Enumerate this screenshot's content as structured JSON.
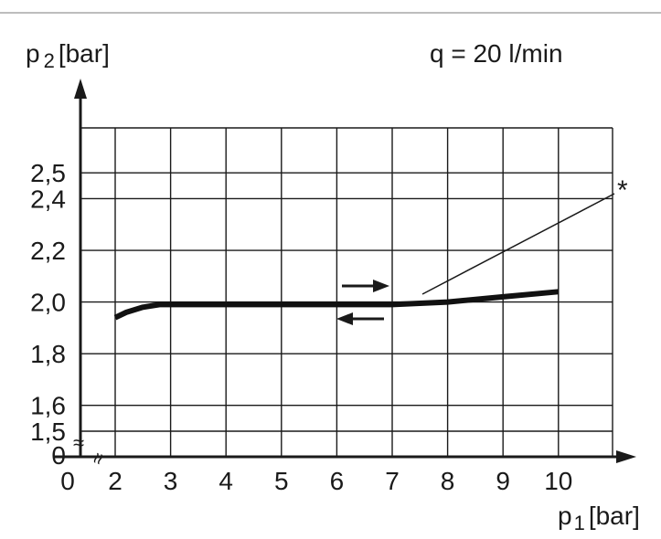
{
  "chart_data": {
    "type": "line",
    "annotation": "q = 20 l/min",
    "ylabel": {
      "main": "p",
      "sub": "2",
      "unit": "[bar]"
    },
    "xlabel": {
      "main": "p",
      "sub": "1",
      "unit": "[bar]"
    },
    "x_ticks": [
      "0",
      "2",
      "3",
      "4",
      "5",
      "6",
      "7",
      "8",
      "9",
      "10"
    ],
    "y_ticks": [
      "0",
      "1,5",
      "1,6",
      "1,8",
      "2,0",
      "2,2",
      "2,4",
      "2,5"
    ],
    "x_break_symbol": "≈",
    "y_break_symbol": "≈",
    "star_label": "*",
    "grid": true,
    "series": [
      {
        "x": [
          2.0,
          2.2,
          2.5,
          2.8,
          3.0,
          4.0,
          5.0,
          6.0,
          7.0,
          8.0,
          9.0,
          10.0
        ],
        "y": [
          1.94,
          1.96,
          1.98,
          1.99,
          1.99,
          1.99,
          1.99,
          1.99,
          1.99,
          2.0,
          2.02,
          2.04
        ]
      }
    ]
  }
}
